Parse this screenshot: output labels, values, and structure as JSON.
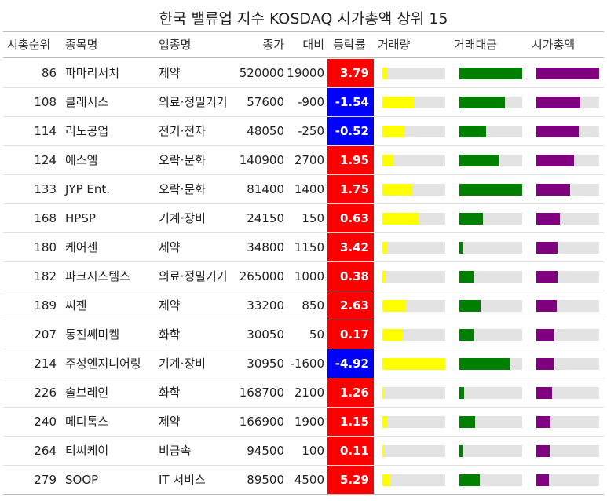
{
  "title": "한국 밸류업 지수 KOSDAQ 시가총액 상위 15",
  "headers": {
    "rank": "시총순위",
    "name": "종목명",
    "sector": "업종명",
    "close": "종가",
    "diff": "대비",
    "rate": "등락률",
    "volume": "거래량",
    "amount": "거래대금",
    "cap": "시가총액"
  },
  "colors": {
    "up": "#ff0000",
    "down": "#0000ff",
    "volume": "#ffff00",
    "amount": "#008000",
    "cap": "#800080",
    "track": "#e3e3e3"
  },
  "chart_data": {
    "type": "table",
    "columns": [
      "시총순위",
      "종목명",
      "업종명",
      "종가",
      "대비",
      "등락률",
      "거래량",
      "거래대금",
      "시가총액"
    ],
    "bar_scale": "fraction of column maximum",
    "rows": [
      {
        "rank": "86",
        "name": "파마리서치",
        "sector": "제약",
        "close": "520000",
        "diff": "19000",
        "rate": "3.79",
        "volume": 0.09,
        "amount": 1.0,
        "cap": 1.0
      },
      {
        "rank": "108",
        "name": "클래시스",
        "sector": "의료·정밀기기",
        "close": "57600",
        "diff": "-900",
        "rate": "-1.54",
        "volume": 0.51,
        "amount": 0.72,
        "cap": 0.7
      },
      {
        "rank": "114",
        "name": "리노공업",
        "sector": "전기·전자",
        "close": "48050",
        "diff": "-250",
        "rate": "-0.52",
        "volume": 0.36,
        "amount": 0.42,
        "cap": 0.68
      },
      {
        "rank": "124",
        "name": "에스엠",
        "sector": "오락·문화",
        "close": "140900",
        "diff": "2700",
        "rate": "1.95",
        "volume": 0.19,
        "amount": 0.64,
        "cap": 0.6
      },
      {
        "rank": "133",
        "name": "JYP Ent.",
        "sector": "오락·문화",
        "close": "81400",
        "diff": "1400",
        "rate": "1.75",
        "volume": 0.49,
        "amount": 1.0,
        "cap": 0.54
      },
      {
        "rank": "168",
        "name": "HPSP",
        "sector": "기계·장비",
        "close": "24150",
        "diff": "150",
        "rate": "0.63",
        "volume": 0.58,
        "amount": 0.37,
        "cap": 0.37
      },
      {
        "rank": "180",
        "name": "케어젠",
        "sector": "제약",
        "close": "34800",
        "diff": "1150",
        "rate": "3.42",
        "volume": 0.07,
        "amount": 0.06,
        "cap": 0.34
      },
      {
        "rank": "182",
        "name": "파크시스템스",
        "sector": "의료·정밀기기",
        "close": "265000",
        "diff": "1000",
        "rate": "0.38",
        "volume": 0.05,
        "amount": 0.22,
        "cap": 0.34
      },
      {
        "rank": "189",
        "name": "씨젠",
        "sector": "제약",
        "close": "33200",
        "diff": "850",
        "rate": "2.63",
        "volume": 0.39,
        "amount": 0.34,
        "cap": 0.32
      },
      {
        "rank": "207",
        "name": "동진쎄미켐",
        "sector": "화학",
        "close": "30050",
        "diff": "50",
        "rate": "0.17",
        "volume": 0.32,
        "amount": 0.23,
        "cap": 0.29
      },
      {
        "rank": "214",
        "name": "주성엔지니어링",
        "sector": "기계·장비",
        "close": "30950",
        "diff": "-1600",
        "rate": "-4.92",
        "volume": 1.0,
        "amount": 0.8,
        "cap": 0.28
      },
      {
        "rank": "226",
        "name": "솔브레인",
        "sector": "화학",
        "close": "168700",
        "diff": "2100",
        "rate": "1.26",
        "volume": 0.02,
        "amount": 0.07,
        "cap": 0.25
      },
      {
        "rank": "240",
        "name": "메디톡스",
        "sector": "제약",
        "close": "166900",
        "diff": "1900",
        "rate": "1.15",
        "volume": 0.07,
        "amount": 0.25,
        "cap": 0.23
      },
      {
        "rank": "264",
        "name": "티씨케이",
        "sector": "비금속",
        "close": "94500",
        "diff": "100",
        "rate": "0.11",
        "volume": 0.03,
        "amount": 0.05,
        "cap": 0.21
      },
      {
        "rank": "279",
        "name": "SOOP",
        "sector": "IT 서비스",
        "close": "89500",
        "diff": "4500",
        "rate": "5.29",
        "volume": 0.14,
        "amount": 0.33,
        "cap": 0.2
      }
    ]
  }
}
